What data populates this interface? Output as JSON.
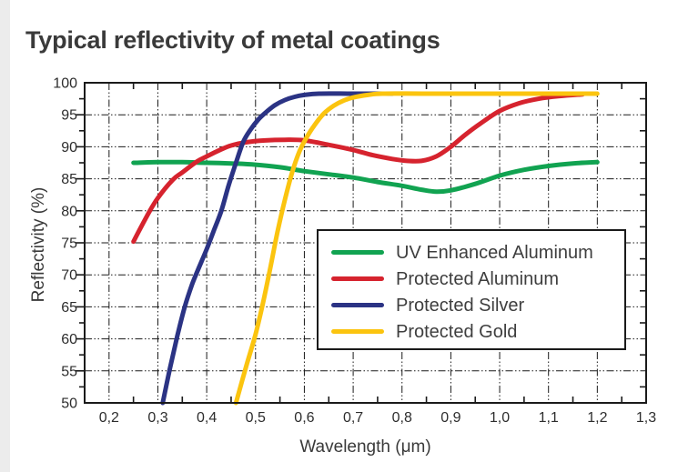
{
  "chart_data": {
    "type": "line",
    "title": "Typical reflectivity of metal coatings",
    "xlabel": "Wavelength (μm)",
    "ylabel": "Reflectivity (%)",
    "xlim": [
      0.15,
      1.3
    ],
    "ylim": [
      50,
      100
    ],
    "grid": {
      "on": true,
      "style": "dash-dot",
      "x_step": 0.1,
      "y_step": 5,
      "color": "#1a1a1a"
    },
    "x_ticks": [
      {
        "value": 0.2,
        "label": "0,2"
      },
      {
        "value": 0.3,
        "label": "0,3"
      },
      {
        "value": 0.4,
        "label": "0,4"
      },
      {
        "value": 0.5,
        "label": "0,5"
      },
      {
        "value": 0.6,
        "label": "0,6"
      },
      {
        "value": 0.7,
        "label": "0,7"
      },
      {
        "value": 0.8,
        "label": "0,8"
      },
      {
        "value": 0.9,
        "label": "0,9"
      },
      {
        "value": 1.0,
        "label": "1,0"
      },
      {
        "value": 1.1,
        "label": "1,1"
      },
      {
        "value": 1.2,
        "label": "1,2"
      },
      {
        "value": 1.3,
        "label": "1,3"
      }
    ],
    "y_ticks": [
      {
        "value": 100,
        "label": "100"
      },
      {
        "value": 95,
        "label": "95"
      },
      {
        "value": 90,
        "label": "90"
      },
      {
        "value": 85,
        "label": "85"
      },
      {
        "value": 80,
        "label": "80"
      },
      {
        "value": 75,
        "label": "75"
      },
      {
        "value": 70,
        "label": "70"
      },
      {
        "value": 65,
        "label": "65"
      },
      {
        "value": 60,
        "label": "60"
      },
      {
        "value": 55,
        "label": "55"
      },
      {
        "value": 50,
        "label": "50"
      }
    ],
    "x_minor_step": 0.05,
    "y_minor_step": 2.5,
    "legend": {
      "position": "center-right"
    },
    "series": [
      {
        "name": "UV Enhanced Aluminum",
        "color": "#11A351",
        "points": [
          [
            0.25,
            87.5
          ],
          [
            0.3,
            87.6
          ],
          [
            0.35,
            87.6
          ],
          [
            0.4,
            87.5
          ],
          [
            0.45,
            87.4
          ],
          [
            0.5,
            87.2
          ],
          [
            0.55,
            86.8
          ],
          [
            0.6,
            86.2
          ],
          [
            0.65,
            85.7
          ],
          [
            0.7,
            85.2
          ],
          [
            0.75,
            84.5
          ],
          [
            0.8,
            83.9
          ],
          [
            0.84,
            83.3
          ],
          [
            0.87,
            83.0
          ],
          [
            0.9,
            83.2
          ],
          [
            0.95,
            84.2
          ],
          [
            1.0,
            85.5
          ],
          [
            1.05,
            86.4
          ],
          [
            1.1,
            87.0
          ],
          [
            1.15,
            87.4
          ],
          [
            1.2,
            87.6
          ]
        ]
      },
      {
        "name": "Protected Aluminum",
        "color": "#D6232E",
        "points": [
          [
            0.25,
            75.2
          ],
          [
            0.28,
            79.5
          ],
          [
            0.3,
            82.0
          ],
          [
            0.33,
            84.8
          ],
          [
            0.35,
            86.0
          ],
          [
            0.38,
            87.7
          ],
          [
            0.4,
            88.5
          ],
          [
            0.43,
            89.6
          ],
          [
            0.45,
            90.2
          ],
          [
            0.48,
            90.7
          ],
          [
            0.52,
            91.0
          ],
          [
            0.56,
            91.1
          ],
          [
            0.6,
            91.0
          ],
          [
            0.65,
            90.3
          ],
          [
            0.7,
            89.5
          ],
          [
            0.74,
            88.7
          ],
          [
            0.78,
            88.1
          ],
          [
            0.81,
            87.8
          ],
          [
            0.84,
            87.8
          ],
          [
            0.87,
            88.5
          ],
          [
            0.9,
            90.0
          ],
          [
            0.93,
            91.9
          ],
          [
            0.96,
            93.6
          ],
          [
            1.0,
            95.6
          ],
          [
            1.04,
            96.8
          ],
          [
            1.08,
            97.5
          ],
          [
            1.12,
            97.9
          ],
          [
            1.17,
            98.2
          ]
        ]
      },
      {
        "name": "Protected Silver",
        "color": "#2B3384",
        "points": [
          [
            0.31,
            50.0
          ],
          [
            0.325,
            55.5
          ],
          [
            0.34,
            60.5
          ],
          [
            0.355,
            65.0
          ],
          [
            0.37,
            68.5
          ],
          [
            0.385,
            71.3
          ],
          [
            0.4,
            74.0
          ],
          [
            0.415,
            77.0
          ],
          [
            0.43,
            80.0
          ],
          [
            0.445,
            84.0
          ],
          [
            0.46,
            87.5
          ],
          [
            0.475,
            90.8
          ],
          [
            0.49,
            92.7
          ],
          [
            0.505,
            94.2
          ],
          [
            0.52,
            95.3
          ],
          [
            0.54,
            96.5
          ],
          [
            0.56,
            97.3
          ],
          [
            0.58,
            97.8
          ],
          [
            0.6,
            98.1
          ],
          [
            0.63,
            98.3
          ],
          [
            0.7,
            98.3
          ],
          [
            0.78,
            98.3
          ]
        ]
      },
      {
        "name": "Protected Gold",
        "color": "#FBC40F",
        "points": [
          [
            0.46,
            50.0
          ],
          [
            0.48,
            55.5
          ],
          [
            0.5,
            60.7
          ],
          [
            0.515,
            65.5
          ],
          [
            0.53,
            71.0
          ],
          [
            0.545,
            76.7
          ],
          [
            0.56,
            81.7
          ],
          [
            0.575,
            86.0
          ],
          [
            0.59,
            89.3
          ],
          [
            0.605,
            91.5
          ],
          [
            0.62,
            93.3
          ],
          [
            0.64,
            95.2
          ],
          [
            0.66,
            96.4
          ],
          [
            0.68,
            97.2
          ],
          [
            0.7,
            97.7
          ],
          [
            0.73,
            98.1
          ],
          [
            0.76,
            98.3
          ],
          [
            0.85,
            98.3
          ],
          [
            1.0,
            98.3
          ],
          [
            1.2,
            98.3
          ]
        ]
      }
    ]
  }
}
